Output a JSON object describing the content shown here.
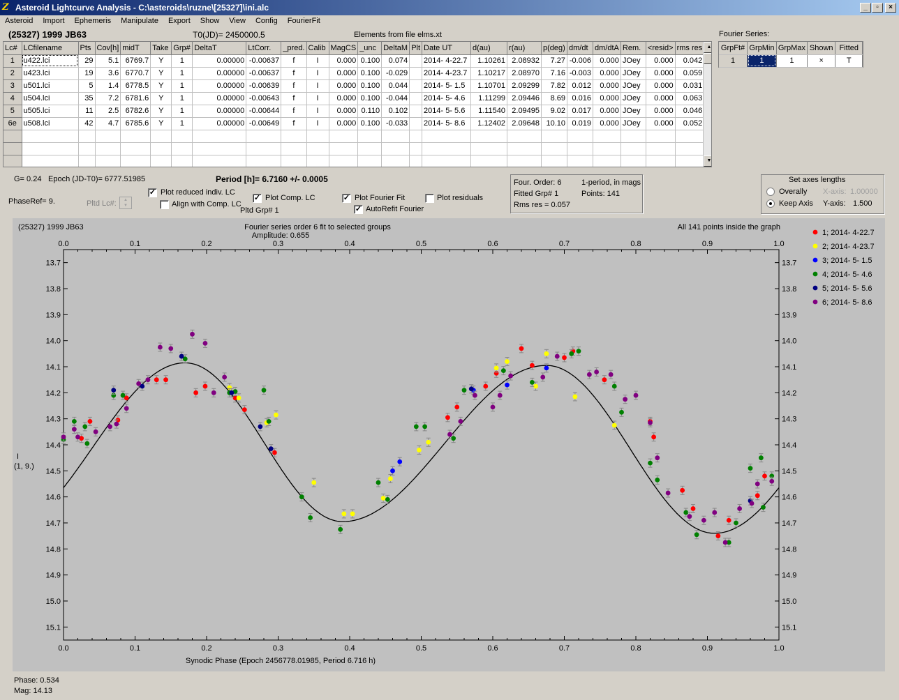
{
  "window": {
    "title": "Asteroid Lightcurve Analysis - C:\\asteroids\\ruzne\\[25327]\\ini.alc",
    "icon_glyph": "Z",
    "min_glyph": "_",
    "max_glyph": "▫",
    "close_glyph": "×"
  },
  "menu": [
    "Asteroid",
    "Import",
    "Ephemeris",
    "Manipulate",
    "Export",
    "Show",
    "View",
    "Config",
    "FourierFit"
  ],
  "header": {
    "object": "(25327) 1999 JB63",
    "t0": "T0(JD)= 2450000.5",
    "elements": "Elements from file elms.xt",
    "fourier_label": "Fourier Series:"
  },
  "lc_table": {
    "columns": [
      "Lc#",
      "LCfilename",
      "Pts",
      "Cov[h]",
      "midT",
      "Take",
      "Grp#",
      "DeltaT",
      "LtCorr.",
      "_pred.",
      "Calib",
      "MagCS",
      "_unc",
      "DeltaM",
      "Plt",
      "Date UT",
      "d(au)",
      "r(au)",
      "p(deg)",
      "dm/dt",
      "dm/dtA",
      "Rem.",
      "<resid>",
      "rms res"
    ],
    "rows": [
      [
        "1",
        "u422.lci",
        "29",
        "5.1",
        "6769.7",
        "Y",
        "1",
        "0.00000",
        "-0.00637",
        "f",
        "I",
        "0.000",
        "0.100",
        "0.074",
        "",
        "2014- 4-22.7",
        "1.10261",
        "2.08932",
        "7.27",
        "-0.006",
        "0.000",
        "JOey",
        "0.000",
        "0.042"
      ],
      [
        "2",
        "u423.lci",
        "19",
        "3.6",
        "6770.7",
        "Y",
        "1",
        "0.00000",
        "-0.00637",
        "f",
        "I",
        "0.000",
        "0.100",
        "-0.029",
        "",
        "2014- 4-23.7",
        "1.10217",
        "2.08970",
        "7.16",
        "-0.003",
        "0.000",
        "JOey",
        "0.000",
        "0.059"
      ],
      [
        "3",
        "u501.lci",
        "5",
        "1.4",
        "6778.5",
        "Y",
        "1",
        "0.00000",
        "-0.00639",
        "f",
        "I",
        "0.000",
        "0.100",
        "0.044",
        "",
        "2014- 5- 1.5",
        "1.10701",
        "2.09299",
        "7.82",
        "0.012",
        "0.000",
        "JOey",
        "0.000",
        "0.031"
      ],
      [
        "4",
        "u504.lci",
        "35",
        "7.2",
        "6781.6",
        "Y",
        "1",
        "0.00000",
        "-0.00643",
        "f",
        "I",
        "0.000",
        "0.100",
        "-0.044",
        "",
        "2014- 5- 4.6",
        "1.11299",
        "2.09446",
        "8.69",
        "0.016",
        "0.000",
        "JOey",
        "0.000",
        "0.063"
      ],
      [
        "5",
        "u505.lci",
        "11",
        "2.5",
        "6782.6",
        "Y",
        "1",
        "0.00000",
        "-0.00644",
        "f",
        "I",
        "0.000",
        "0.110",
        "0.102",
        "",
        "2014- 5- 5.6",
        "1.11540",
        "2.09495",
        "9.02",
        "0.017",
        "0.000",
        "JOey",
        "0.000",
        "0.046"
      ],
      [
        "6e",
        "u508.lci",
        "42",
        "4.7",
        "6785.6",
        "Y",
        "1",
        "0.00000",
        "-0.00649",
        "f",
        "I",
        "0.000",
        "0.100",
        "-0.033",
        "",
        "2014- 5- 8.6",
        "1.12402",
        "2.09648",
        "10.10",
        "0.019",
        "0.000",
        "JOey",
        "0.000",
        "0.052"
      ]
    ],
    "empty_rows": 4
  },
  "fourier_table": {
    "columns": [
      "GrpFt#",
      "GrpMin",
      "GrpMax",
      "Shown",
      "Fitted"
    ],
    "row": [
      "1",
      "1",
      "1",
      "×",
      "T"
    ]
  },
  "controls": {
    "g_label": "G= 0.24",
    "epoch_label": "Epoch (JD-T0)= 6777.51985",
    "period_label": "Period [h]= 6.7160 +/- 0.0005",
    "phaseref_label": "PhaseRef= 9.",
    "pltd_lc_label": "Pltd Lc#:",
    "pltd_grp_label": "Pltd Grp#  1",
    "plot_reduced": {
      "label": "Plot reduced indiv. LC",
      "checked": true
    },
    "align_comp": {
      "label": "Align with Comp. LC",
      "checked": false
    },
    "plot_comp": {
      "label": "Plot Comp. LC",
      "checked": true
    },
    "plot_fourier": {
      "label": "Plot Fourier Fit",
      "checked": true
    },
    "autorefit": {
      "label": "AutoRefit Fourier",
      "checked": true
    },
    "plot_residuals": {
      "label": "Plot residuals",
      "checked": false
    }
  },
  "fit_info": {
    "order": "Four. Order:  6",
    "mode": "1-period, in mags",
    "fitted_grp": "Fitted Grp# 1",
    "points": "Points: 141",
    "rms": "Rms res     = 0.057"
  },
  "axes_box": {
    "title": "Set axes lengths",
    "overally": "Overally",
    "keep_axis": "Keep Axis",
    "xaxis_label": "X-axis:",
    "xaxis_value": "1.00000",
    "yaxis_label": "Y-axis:",
    "yaxis_value": "1.500",
    "selected": "keep_axis"
  },
  "chart_data": {
    "type": "scatter",
    "title": "(25327) 1999 JB63",
    "subtitle": "Fourier series order 6 fit to selected groups",
    "amplitude": "Amplitude: 0.655",
    "inside_note": "All 141 points inside the graph",
    "xlabel": "Synodic Phase (Epoch 2456778.01985, Period 6.716 h)",
    "ylabel": "I\n(1, 9.)",
    "xlim": [
      0.0,
      1.0
    ],
    "ylim": [
      15.15,
      13.65
    ],
    "y_reversed": true,
    "xticks": [
      "0.0",
      "0.1",
      "0.2",
      "0.3",
      "0.4",
      "0.5",
      "0.6",
      "0.7",
      "0.8",
      "0.9",
      "1.0"
    ],
    "yticks": [
      "13.7",
      "13.8",
      "13.9",
      "14.0",
      "14.1",
      "14.2",
      "14.3",
      "14.4",
      "14.5",
      "14.6",
      "14.7",
      "14.8",
      "14.9",
      "15.0",
      "15.1"
    ],
    "legend_position": "right",
    "series": [
      {
        "name": "1; 2014- 4-22.7",
        "color": "#ff0000",
        "points": [
          [
            0.025,
            14.375
          ],
          [
            0.037,
            14.31
          ],
          [
            0.076,
            14.305
          ],
          [
            0.088,
            14.22
          ],
          [
            0.13,
            14.15
          ],
          [
            0.143,
            14.15
          ],
          [
            0.185,
            14.2
          ],
          [
            0.198,
            14.175
          ],
          [
            0.24,
            14.22
          ],
          [
            0.253,
            14.265
          ],
          [
            0.295,
            14.43
          ],
          [
            0.537,
            14.295
          ],
          [
            0.55,
            14.255
          ],
          [
            0.59,
            14.175
          ],
          [
            0.605,
            14.125
          ],
          [
            0.64,
            14.03
          ],
          [
            0.655,
            14.095
          ],
          [
            0.7,
            14.065
          ],
          [
            0.712,
            14.04
          ],
          [
            0.756,
            14.15
          ],
          [
            0.82,
            14.31
          ],
          [
            0.825,
            14.37
          ],
          [
            0.865,
            14.575
          ],
          [
            0.88,
            14.645
          ],
          [
            0.915,
            14.75
          ],
          [
            0.93,
            14.69
          ],
          [
            0.97,
            14.595
          ],
          [
            0.98,
            14.52
          ]
        ]
      },
      {
        "name": "2; 2014- 4-23.7",
        "color": "#ffff00",
        "points": [
          [
            0.232,
            14.18
          ],
          [
            0.245,
            14.22
          ],
          [
            0.284,
            14.315
          ],
          [
            0.297,
            14.285
          ],
          [
            0.35,
            14.545
          ],
          [
            0.392,
            14.665
          ],
          [
            0.404,
            14.665
          ],
          [
            0.447,
            14.605
          ],
          [
            0.457,
            14.53
          ],
          [
            0.497,
            14.42
          ],
          [
            0.51,
            14.39
          ],
          [
            0.605,
            14.105
          ],
          [
            0.62,
            14.08
          ],
          [
            0.66,
            14.175
          ],
          [
            0.675,
            14.05
          ],
          [
            0.715,
            14.215
          ],
          [
            0.77,
            14.325
          ]
        ]
      },
      {
        "name": "3; 2014- 5- 1.5",
        "color": "#0000ff",
        "points": [
          [
            0.46,
            14.5
          ],
          [
            0.47,
            14.465
          ],
          [
            0.573,
            14.19
          ],
          [
            0.62,
            14.17
          ],
          [
            0.675,
            14.105
          ]
        ]
      },
      {
        "name": "4; 2014- 5- 4.6",
        "color": "#008000",
        "points": [
          [
            0.0,
            14.38
          ],
          [
            0.015,
            14.31
          ],
          [
            0.03,
            14.33
          ],
          [
            0.033,
            14.395
          ],
          [
            0.07,
            14.21
          ],
          [
            0.083,
            14.21
          ],
          [
            0.17,
            14.07
          ],
          [
            0.232,
            14.2
          ],
          [
            0.24,
            14.195
          ],
          [
            0.28,
            14.19
          ],
          [
            0.287,
            14.31
          ],
          [
            0.333,
            14.6
          ],
          [
            0.345,
            14.68
          ],
          [
            0.387,
            14.725
          ],
          [
            0.44,
            14.545
          ],
          [
            0.453,
            14.61
          ],
          [
            0.493,
            14.33
          ],
          [
            0.505,
            14.33
          ],
          [
            0.545,
            14.375
          ],
          [
            0.56,
            14.19
          ],
          [
            0.615,
            14.115
          ],
          [
            0.655,
            14.16
          ],
          [
            0.71,
            14.05
          ],
          [
            0.72,
            14.04
          ],
          [
            0.77,
            14.175
          ],
          [
            0.78,
            14.275
          ],
          [
            0.82,
            14.47
          ],
          [
            0.83,
            14.535
          ],
          [
            0.87,
            14.66
          ],
          [
            0.885,
            14.745
          ],
          [
            0.93,
            14.775
          ],
          [
            0.94,
            14.7
          ],
          [
            0.96,
            14.49
          ],
          [
            0.975,
            14.45
          ],
          [
            0.978,
            14.64
          ],
          [
            0.99,
            14.52
          ]
        ]
      },
      {
        "name": "5; 2014- 5- 5.6",
        "color": "#000080",
        "points": [
          [
            0.07,
            14.19
          ],
          [
            0.11,
            14.175
          ],
          [
            0.165,
            14.06
          ],
          [
            0.235,
            14.2
          ],
          [
            0.275,
            14.33
          ],
          [
            0.29,
            14.415
          ],
          [
            0.57,
            14.185
          ],
          [
            0.96,
            14.615
          ]
        ]
      },
      {
        "name": "6; 2014- 5- 8.6",
        "color": "#800080",
        "points": [
          [
            0.0,
            14.37
          ],
          [
            0.015,
            14.34
          ],
          [
            0.02,
            14.37
          ],
          [
            0.045,
            14.35
          ],
          [
            0.065,
            14.33
          ],
          [
            0.074,
            14.32
          ],
          [
            0.088,
            14.26
          ],
          [
            0.105,
            14.165
          ],
          [
            0.118,
            14.15
          ],
          [
            0.135,
            14.025
          ],
          [
            0.15,
            14.03
          ],
          [
            0.18,
            13.975
          ],
          [
            0.198,
            14.01
          ],
          [
            0.21,
            14.2
          ],
          [
            0.225,
            14.14
          ],
          [
            0.54,
            14.36
          ],
          [
            0.555,
            14.31
          ],
          [
            0.575,
            14.21
          ],
          [
            0.6,
            14.255
          ],
          [
            0.61,
            14.21
          ],
          [
            0.625,
            14.135
          ],
          [
            0.67,
            14.14
          ],
          [
            0.69,
            14.06
          ],
          [
            0.735,
            14.13
          ],
          [
            0.745,
            14.12
          ],
          [
            0.765,
            14.13
          ],
          [
            0.785,
            14.225
          ],
          [
            0.8,
            14.21
          ],
          [
            0.82,
            14.315
          ],
          [
            0.83,
            14.45
          ],
          [
            0.845,
            14.585
          ],
          [
            0.875,
            14.675
          ],
          [
            0.895,
            14.69
          ],
          [
            0.91,
            14.66
          ],
          [
            0.925,
            14.775
          ],
          [
            0.945,
            14.645
          ],
          [
            0.962,
            14.625
          ],
          [
            0.97,
            14.55
          ],
          [
            0.99,
            14.54
          ]
        ]
      }
    ],
    "fit_curve": {
      "color": "#000000",
      "mean": 14.39,
      "extrema": [
        [
          0.17,
          14.085
        ],
        [
          0.39,
          14.695
        ],
        [
          0.675,
          14.095
        ],
        [
          0.91,
          14.74
        ]
      ]
    }
  },
  "status": {
    "phase": "Phase:  0.534",
    "mag": "Mag:    14.13"
  }
}
